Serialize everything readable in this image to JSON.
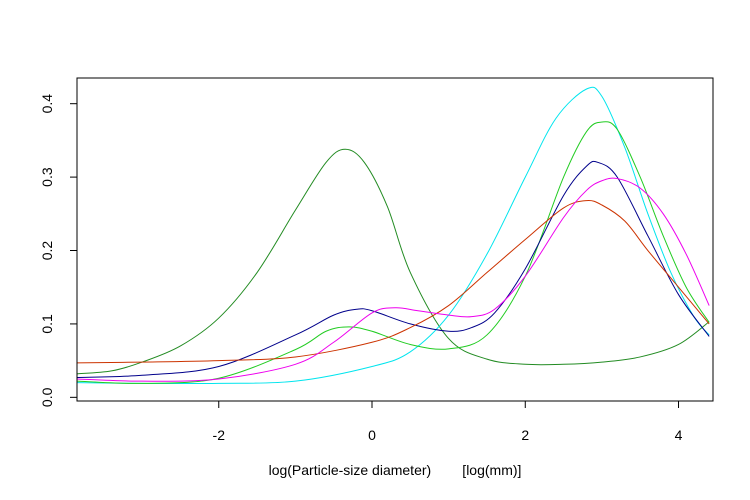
{
  "chart_data": {
    "type": "line",
    "title": "",
    "xlabel": "log(Particle-size diameter)        [log(mm)]",
    "ylabel": "",
    "xlim": [
      -3.85,
      4.45
    ],
    "ylim": [
      -0.005,
      0.435
    ],
    "grid": false,
    "legend": "none",
    "x_ticks": [
      {
        "value": -2,
        "label": "-2"
      },
      {
        "value": 0,
        "label": "0"
      },
      {
        "value": 2,
        "label": "2"
      },
      {
        "value": 4,
        "label": "4"
      }
    ],
    "y_ticks": [
      {
        "value": 0.0,
        "label": "0.0"
      },
      {
        "value": 0.1,
        "label": "0.1"
      },
      {
        "value": 0.2,
        "label": "0.2"
      },
      {
        "value": 0.3,
        "label": "0.3"
      },
      {
        "value": 0.4,
        "label": "0.4"
      }
    ],
    "series": [
      {
        "color": "#228b22",
        "x": [
          -3.85,
          -3.4,
          -3.0,
          -2.5,
          -2.0,
          -1.5,
          -1.0,
          -0.6,
          -0.35,
          -0.1,
          0.2,
          0.5,
          1.0,
          1.5,
          2.0,
          2.5,
          3.0,
          3.5,
          4.0,
          4.4
        ],
        "y": [
          0.032,
          0.036,
          0.048,
          0.07,
          0.108,
          0.17,
          0.255,
          0.32,
          0.338,
          0.32,
          0.26,
          0.17,
          0.08,
          0.052,
          0.045,
          0.045,
          0.048,
          0.055,
          0.072,
          0.103
        ]
      },
      {
        "color": "#00e5ee",
        "x": [
          -3.85,
          -3.0,
          -2.0,
          -1.0,
          0.0,
          0.5,
          1.0,
          1.5,
          2.0,
          2.4,
          2.8,
          3.0,
          3.3,
          3.6,
          3.9,
          4.2,
          4.4
        ],
        "y": [
          0.02,
          0.019,
          0.019,
          0.022,
          0.042,
          0.062,
          0.112,
          0.195,
          0.3,
          0.38,
          0.42,
          0.41,
          0.34,
          0.25,
          0.17,
          0.11,
          0.085
        ]
      },
      {
        "color": "#22cc22",
        "x": [
          -3.85,
          -3.0,
          -2.0,
          -1.0,
          -0.6,
          -0.3,
          0.0,
          0.5,
          1.0,
          1.5,
          2.0,
          2.5,
          2.8,
          3.0,
          3.2,
          3.5,
          3.8,
          4.1,
          4.4
        ],
        "y": [
          0.022,
          0.019,
          0.026,
          0.065,
          0.09,
          0.096,
          0.09,
          0.072,
          0.066,
          0.085,
          0.165,
          0.3,
          0.362,
          0.375,
          0.365,
          0.3,
          0.22,
          0.15,
          0.102
        ]
      },
      {
        "color": "#00008b",
        "x": [
          -3.85,
          -3.0,
          -2.0,
          -1.0,
          -0.5,
          -0.2,
          0.0,
          0.5,
          1.0,
          1.3,
          1.6,
          2.0,
          2.5,
          2.8,
          2.95,
          3.2,
          3.6,
          4.0,
          4.4
        ],
        "y": [
          0.027,
          0.03,
          0.042,
          0.085,
          0.112,
          0.12,
          0.118,
          0.1,
          0.09,
          0.095,
          0.115,
          0.175,
          0.275,
          0.315,
          0.32,
          0.3,
          0.22,
          0.14,
          0.083
        ]
      },
      {
        "color": "#cc3300",
        "x": [
          -3.85,
          -3.0,
          -2.0,
          -1.0,
          0.0,
          0.5,
          1.0,
          1.5,
          2.0,
          2.5,
          2.8,
          3.0,
          3.3,
          3.6,
          4.0,
          4.4
        ],
        "y": [
          0.047,
          0.048,
          0.05,
          0.055,
          0.075,
          0.095,
          0.125,
          0.17,
          0.215,
          0.258,
          0.268,
          0.262,
          0.24,
          0.2,
          0.15,
          0.1
        ]
      },
      {
        "color": "#ee00ee",
        "x": [
          -3.85,
          -3.0,
          -2.0,
          -1.0,
          -0.5,
          0.0,
          0.3,
          0.6,
          1.0,
          1.3,
          1.6,
          2.0,
          2.5,
          2.8,
          3.0,
          3.2,
          3.5,
          3.8,
          4.1,
          4.4
        ],
        "y": [
          0.025,
          0.022,
          0.025,
          0.045,
          0.075,
          0.115,
          0.122,
          0.118,
          0.112,
          0.11,
          0.12,
          0.165,
          0.245,
          0.282,
          0.295,
          0.298,
          0.285,
          0.25,
          0.195,
          0.125
        ]
      }
    ]
  }
}
